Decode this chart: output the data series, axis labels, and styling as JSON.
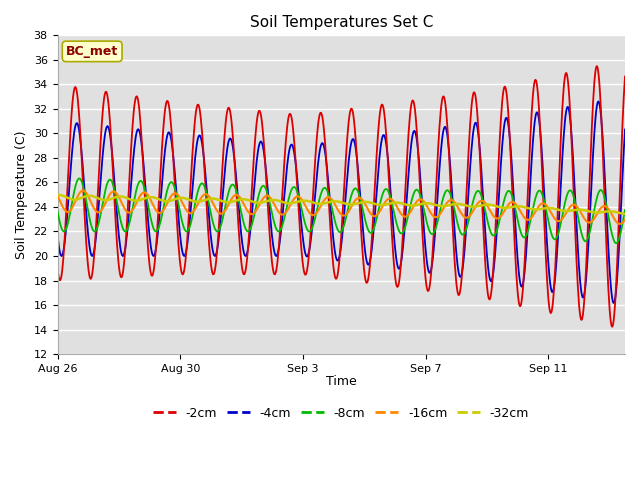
{
  "title": "Soil Temperatures Set C",
  "xlabel": "Time",
  "ylabel": "Soil Temperature (C)",
  "ylim": [
    12,
    38
  ],
  "yticks": [
    12,
    14,
    16,
    18,
    20,
    22,
    24,
    26,
    28,
    30,
    32,
    34,
    36,
    38
  ],
  "xtick_labels": [
    "Aug 26",
    "Aug 30",
    "Sep 3",
    "Sep 7",
    "Sep 11"
  ],
  "xtick_positions": [
    0,
    4,
    8,
    12,
    16
  ],
  "n_days": 18.5,
  "annotation_text": "BC_met",
  "background_color": "#ffffff",
  "plot_bg_color": "#e0e0e0",
  "grid_color": "#ffffff",
  "colors": {
    "-2cm": "#dd0000",
    "-4cm": "#0000cc",
    "-8cm": "#00bb00",
    "-16cm": "#ff8800",
    "-32cm": "#cccc00"
  },
  "lw_thin": 1.3,
  "lw_32cm": 1.8,
  "title_fontsize": 11,
  "label_fontsize": 9,
  "tick_fontsize": 8
}
